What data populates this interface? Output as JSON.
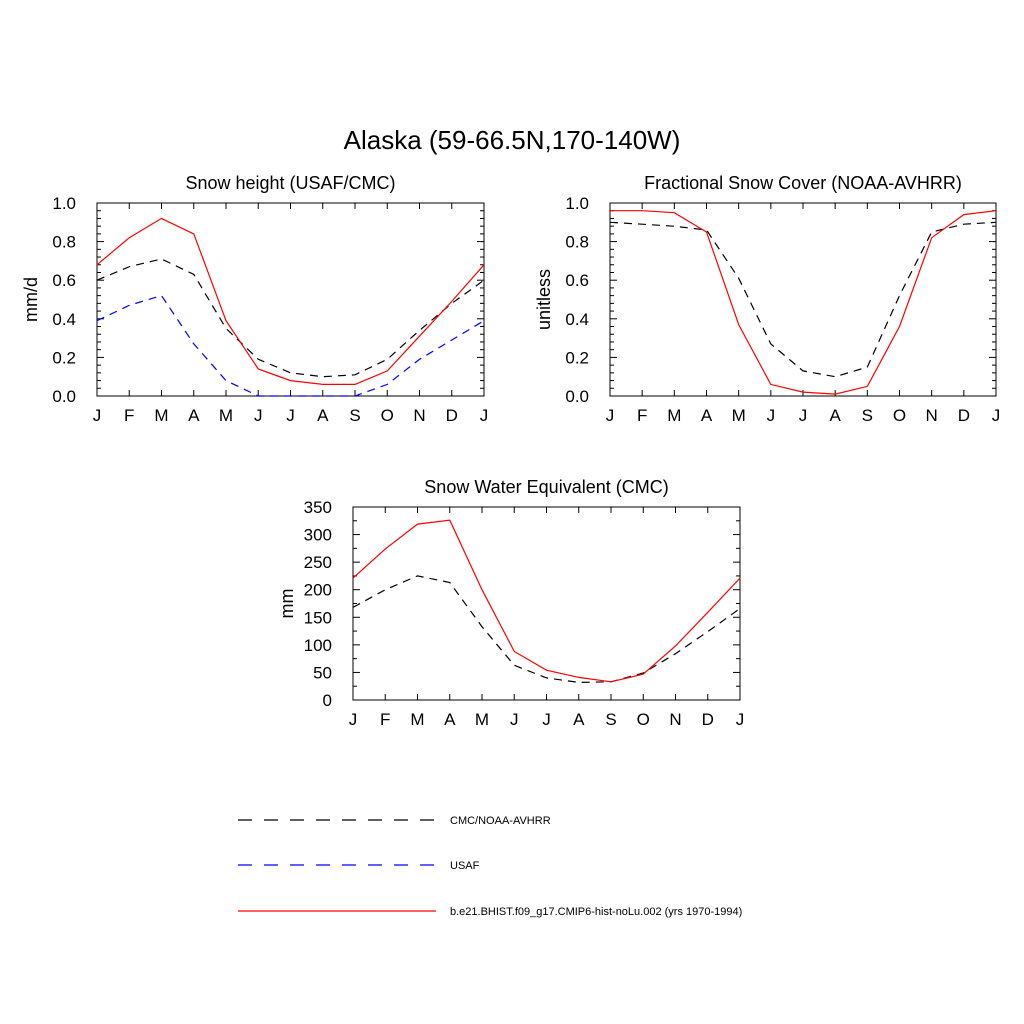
{
  "figure": {
    "title": "Alaska (59-66.5N,170-140W)"
  },
  "legend": {
    "entries": [
      {
        "label": "CMC/NOAA-AVHRR",
        "color": "#000000",
        "dash": "dashed"
      },
      {
        "label": "USAF",
        "color": "#0000ff",
        "dash": "dashed"
      },
      {
        "label": "b.e21.BHIST.f09_g17.CMIP6-hist-noLu.002 (yrs 1970-1994)",
        "color": "#ff0000",
        "dash": "solid"
      }
    ]
  },
  "chart_data": [
    {
      "type": "line",
      "title": "Snow height (USAF/CMC)",
      "xlabel": "",
      "ylabel": "mm/d",
      "categories": [
        "J",
        "F",
        "M",
        "A",
        "M",
        "J",
        "J",
        "A",
        "S",
        "O",
        "N",
        "D",
        "J"
      ],
      "ylim": [
        0,
        1.0
      ],
      "yticks": [
        0.0,
        0.2,
        0.4,
        0.6,
        0.8,
        1.0
      ],
      "ytick_labels": [
        "0.0",
        "0.2",
        "0.4",
        "0.6",
        "0.8",
        "1.0"
      ],
      "series": [
        {
          "name": "CMC/NOAA-AVHRR",
          "color": "#000000",
          "dash": "dashed",
          "values": [
            0.6,
            0.67,
            0.71,
            0.63,
            0.35,
            0.19,
            0.12,
            0.1,
            0.11,
            0.19,
            0.34,
            0.48,
            0.6
          ]
        },
        {
          "name": "USAF",
          "color": "#0000ff",
          "dash": "dashed",
          "values": [
            0.39,
            0.47,
            0.52,
            0.27,
            0.08,
            0.0,
            0.0,
            0.0,
            0.0,
            0.06,
            0.19,
            0.29,
            0.39
          ]
        },
        {
          "name": "b.e21.BHIST.f09_g17.CMIP6-hist-noLu.002 (yrs 1970-1994)",
          "color": "#ff0000",
          "dash": "solid",
          "values": [
            0.68,
            0.82,
            0.92,
            0.84,
            0.39,
            0.14,
            0.08,
            0.06,
            0.06,
            0.13,
            0.31,
            0.49,
            0.68
          ]
        }
      ]
    },
    {
      "type": "line",
      "title": "Fractional Snow Cover (NOAA-AVHRR)",
      "xlabel": "",
      "ylabel": "unitless",
      "categories": [
        "J",
        "F",
        "M",
        "A",
        "M",
        "J",
        "J",
        "A",
        "S",
        "O",
        "N",
        "D",
        "J"
      ],
      "ylim": [
        0,
        1.0
      ],
      "yticks": [
        0.0,
        0.2,
        0.4,
        0.6,
        0.8,
        1.0
      ],
      "ytick_labels": [
        "0.0",
        "0.2",
        "0.4",
        "0.6",
        "0.8",
        "1.0"
      ],
      "series": [
        {
          "name": "CMC/NOAA-AVHRR",
          "color": "#000000",
          "dash": "dashed",
          "values": [
            0.9,
            0.89,
            0.88,
            0.86,
            0.61,
            0.27,
            0.13,
            0.1,
            0.15,
            0.52,
            0.85,
            0.89,
            0.9
          ]
        },
        {
          "name": "b.e21.BHIST.f09_g17.CMIP6-hist-noLu.002 (yrs 1970-1994)",
          "color": "#ff0000",
          "dash": "solid",
          "values": [
            0.96,
            0.96,
            0.95,
            0.85,
            0.37,
            0.06,
            0.02,
            0.01,
            0.05,
            0.36,
            0.82,
            0.94,
            0.96
          ]
        }
      ]
    },
    {
      "type": "line",
      "title": "Snow Water Equivalent (CMC)",
      "xlabel": "",
      "ylabel": "mm",
      "categories": [
        "J",
        "F",
        "M",
        "A",
        "M",
        "J",
        "J",
        "A",
        "S",
        "O",
        "N",
        "D",
        "J"
      ],
      "ylim": [
        0,
        350
      ],
      "yticks": [
        0,
        50,
        100,
        150,
        200,
        250,
        300,
        350
      ],
      "ytick_labels": [
        "0",
        "50",
        "100",
        "150",
        "200",
        "250",
        "300",
        "350"
      ],
      "series": [
        {
          "name": "CMC/NOAA-AVHRR",
          "color": "#000000",
          "dash": "dashed",
          "values": [
            168,
            200,
            225,
            213,
            133,
            63,
            40,
            32,
            33,
            49,
            84,
            124,
            166
          ]
        },
        {
          "name": "b.e21.BHIST.f09_g17.CMIP6-hist-noLu.002 (yrs 1970-1994)",
          "color": "#ff0000",
          "dash": "solid",
          "values": [
            221,
            274,
            319,
            326,
            200,
            88,
            54,
            41,
            33,
            47,
            98,
            159,
            221
          ]
        }
      ]
    }
  ]
}
